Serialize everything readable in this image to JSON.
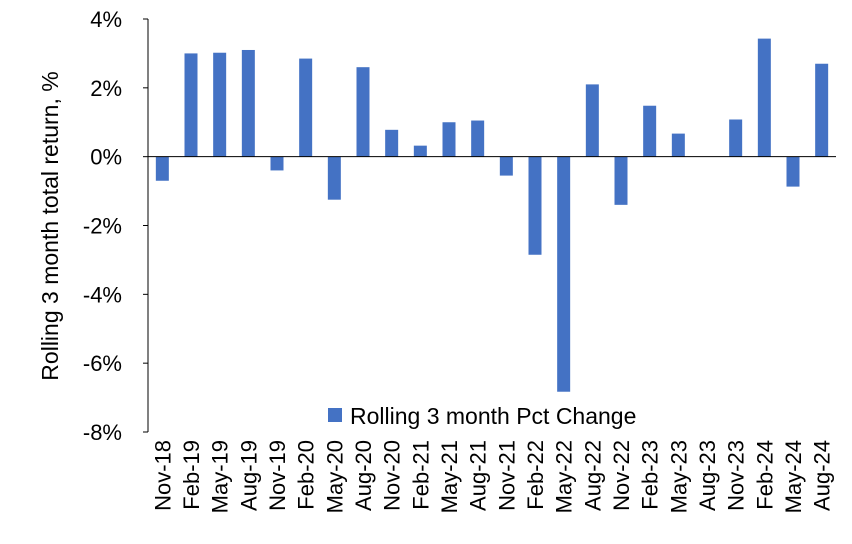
{
  "chart_data": {
    "type": "bar",
    "title": "",
    "xlabel": "",
    "ylabel": "Rolling 3 month total return, %",
    "ylim": [
      -8,
      4
    ],
    "yticks": [
      "-8%",
      "-6%",
      "-4%",
      "-2%",
      "0%",
      "2%",
      "4%"
    ],
    "grid": false,
    "legend": "bottom-center",
    "categories": [
      "Nov-18",
      "Feb-19",
      "May-19",
      "Aug-19",
      "Nov-19",
      "Feb-20",
      "May-20",
      "Aug-20",
      "Nov-20",
      "Feb-21",
      "May-21",
      "Aug-21",
      "Nov-21",
      "Feb-22",
      "May-22",
      "Aug-22",
      "Nov-22",
      "Feb-23",
      "May-23",
      "Aug-23",
      "Nov-23",
      "Feb-24",
      "May-24",
      "Aug-24"
    ],
    "series": [
      {
        "name": "Rolling 3 month Pct Change",
        "color": "#4472C4",
        "values": [
          -0.7,
          3.0,
          3.02,
          3.1,
          -0.4,
          2.85,
          -1.25,
          2.6,
          0.78,
          0.32,
          1.0,
          1.05,
          -0.55,
          -2.85,
          -6.83,
          2.1,
          -1.4,
          1.48,
          0.67,
          0.0,
          1.08,
          3.43,
          -0.87,
          2.7
        ]
      }
    ]
  }
}
